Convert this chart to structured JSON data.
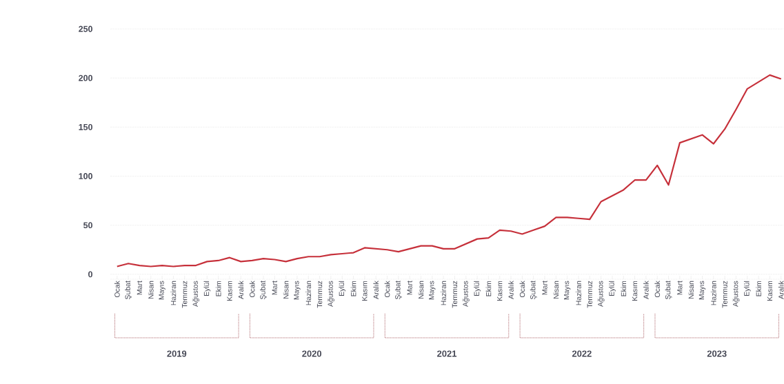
{
  "chart_data": {
    "type": "line",
    "categories": [
      "Ocak",
      "Şubat",
      "Mart",
      "Nisan",
      "Mayıs",
      "Haziran",
      "Temmuz",
      "Ağustos",
      "Eylül",
      "Ekim",
      "Kasım",
      "Aralık",
      "Ocak",
      "Şubat",
      "Mart",
      "Nisan",
      "Mayıs",
      "Haziran",
      "Temmuz",
      "Ağustos",
      "Eylül",
      "Ekim",
      "Kasım",
      "Aralık",
      "Ocak",
      "Şubat",
      "Mart",
      "Nisan",
      "Mayıs",
      "Haziran",
      "Temmuz",
      "Ağustos",
      "Eylül",
      "Ekim",
      "Kasım",
      "Aralık",
      "Ocak",
      "Şubat",
      "Mart",
      "Nisan",
      "Mayıs",
      "Haziran",
      "Temmuz",
      "Ağustos",
      "Eylül",
      "Ekim",
      "Kasım",
      "Aralık",
      "Ocak",
      "Şubat",
      "Mart",
      "Nisan",
      "Mayıs",
      "Haziran",
      "Temmuz",
      "Ağustos",
      "Eylül",
      "Ekim",
      "Kasım",
      "Aralık"
    ],
    "series": [
      {
        "color": "#c6303a",
        "values": [
          8,
          11,
          9,
          8,
          9,
          8,
          9,
          9,
          13,
          14,
          17,
          13,
          14,
          16,
          15,
          13,
          16,
          18,
          18,
          20,
          21,
          22,
          27,
          26,
          25,
          23,
          26,
          29,
          29,
          26,
          26,
          31,
          36,
          37,
          45,
          44,
          41,
          45,
          49,
          58,
          58,
          57,
          56,
          74,
          80,
          86,
          96,
          96,
          111,
          91,
          134,
          138,
          142,
          133,
          148,
          168,
          189,
          196,
          203,
          199
        ]
      }
    ],
    "annotations": [
      "2019",
      "2020",
      "2021",
      "2022",
      "2023"
    ],
    "ylim": [
      -5,
      250
    ],
    "yticks": [
      0,
      50,
      100,
      150,
      200,
      250
    ],
    "grid": "y",
    "marker": "none",
    "line_style": "solid"
  }
}
